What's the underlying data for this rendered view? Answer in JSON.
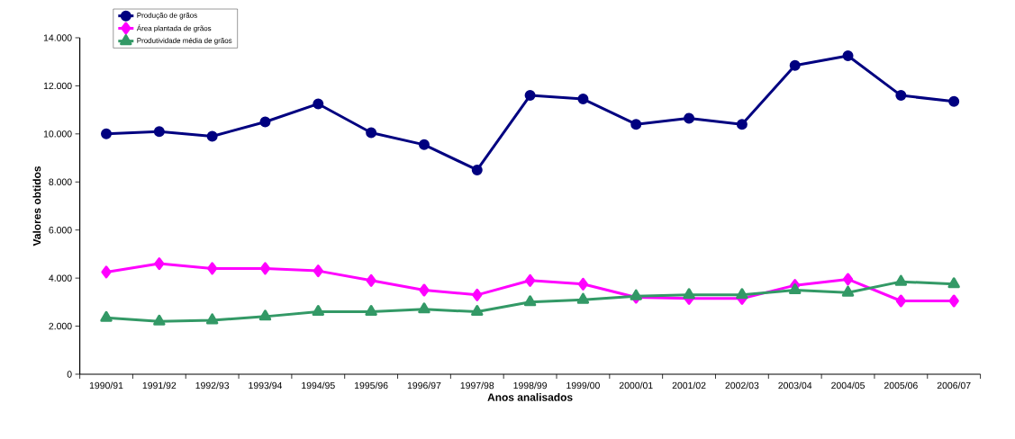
{
  "chart_data": {
    "type": "line",
    "xlabel": "Anos analisados",
    "ylabel": "Valores obtidos",
    "categories": [
      "1990/91",
      "1991/92",
      "1992/93",
      "1993/94",
      "1994/95",
      "1995/96",
      "1996/97",
      "1997/98",
      "1998/99",
      "1999/00",
      "2000/01",
      "2001/02",
      "2002/03",
      "2003/04",
      "2004/05",
      "2005/06",
      "2006/07"
    ],
    "series": [
      {
        "name": "Produção de grãos",
        "color": "#000080",
        "marker": "circle",
        "values": [
          10000,
          10100,
          9900,
          10500,
          11250,
          10050,
          9550,
          8500,
          11600,
          11450,
          10400,
          10650,
          10400,
          12850,
          13250,
          11600,
          11350
        ]
      },
      {
        "name": "Área plantada de grãos",
        "color": "#ff00ff",
        "marker": "diamond",
        "values": [
          4250,
          4600,
          4400,
          4400,
          4300,
          3900,
          3500,
          3300,
          3900,
          3750,
          3200,
          3150,
          3150,
          3700,
          3950,
          3050,
          3050
        ]
      },
      {
        "name": "Produtividade média de grãos",
        "color": "#339966",
        "marker": "triangle",
        "values": [
          2350,
          2200,
          2250,
          2400,
          2600,
          2600,
          2700,
          2600,
          3000,
          3100,
          3250,
          3300,
          3300,
          3500,
          3400,
          3850,
          3750
        ]
      }
    ],
    "ylim": [
      0,
      14000
    ],
    "yticks": [
      0,
      {
        "value": 2000,
        "label": "2.000"
      },
      {
        "value": 4000,
        "label": "4.000"
      },
      {
        "value": 6000,
        "label": "6.000"
      },
      {
        "value": 8000,
        "label": "8.000"
      },
      {
        "value": 10000,
        "label": "10.000"
      },
      {
        "value": 12000,
        "label": "12.000"
      },
      {
        "value": 14000,
        "label": "14.000"
      }
    ],
    "grid": false,
    "legend": "top left",
    "line_style": "solid"
  }
}
